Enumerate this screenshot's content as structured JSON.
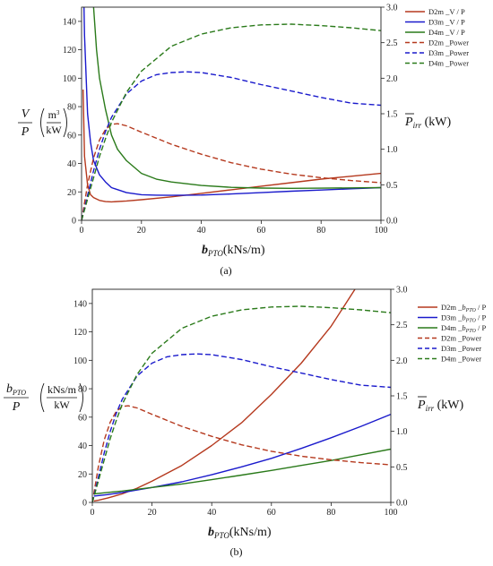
{
  "chart_data": [
    {
      "type": "line",
      "caption": "(a)",
      "xlabel": {
        "main": "b",
        "sub": "PTO",
        "tail": "(kNs/m)"
      },
      "ylabel_left": {
        "numer": "V",
        "denom": "P",
        "unit_top": "m",
        "unit_sup": "3",
        "unit_bot": "kW"
      },
      "ylabel_right": {
        "main": "P",
        "sub": "irr",
        "tail": " (kW)"
      },
      "xlim": [
        0,
        100
      ],
      "ylim_left": [
        0,
        150
      ],
      "ylim_right": [
        0,
        3.0
      ],
      "xticks": [
        0,
        20,
        40,
        60,
        80,
        100
      ],
      "yticks_left": [
        0,
        20,
        40,
        60,
        80,
        100,
        120,
        140
      ],
      "yticks_right": [
        "0.0",
        "0.5",
        "1.0",
        "1.5",
        "2.0",
        "2.5",
        "3.0"
      ],
      "legend_position": "top-right",
      "series": [
        {
          "name": "D2m _V / P",
          "axis": "left",
          "style": "solid",
          "color": "#b5391e",
          "x": [
            0.5,
            1,
            2,
            3,
            4,
            6,
            8,
            10,
            15,
            20,
            30,
            40,
            50,
            60,
            70,
            80,
            90,
            100
          ],
          "y": [
            92,
            45,
            25,
            18,
            16,
            14,
            13.2,
            13,
            13.6,
            14.5,
            16.5,
            19,
            21.5,
            24,
            26.5,
            29,
            31,
            33
          ]
        },
        {
          "name": "D3m _V / P",
          "axis": "left",
          "style": "solid",
          "color": "#1a1acc",
          "x": [
            0.8,
            1,
            2,
            3,
            4,
            6,
            8,
            10,
            15,
            20,
            25,
            30,
            40,
            50,
            60,
            70,
            80,
            90,
            100
          ],
          "y": [
            150,
            130,
            75,
            55,
            42,
            32,
            27,
            23,
            19.5,
            18,
            17.7,
            17.6,
            17.8,
            18.5,
            19.5,
            20.5,
            21.3,
            22.2,
            23
          ]
        },
        {
          "name": "D4m _V / P",
          "axis": "left",
          "style": "solid",
          "color": "#2a7a1a",
          "x": [
            4,
            5,
            6,
            8,
            10,
            12,
            15,
            20,
            25,
            30,
            40,
            50,
            60,
            70,
            80,
            90,
            100
          ],
          "y": [
            150,
            120,
            100,
            78,
            60,
            50,
            42,
            33,
            29,
            27,
            24.5,
            23.2,
            22.7,
            22.5,
            22.6,
            22.8,
            23
          ]
        },
        {
          "name": "D2m _Power",
          "axis": "right",
          "style": "dashed",
          "color": "#b5391e",
          "x": [
            0,
            2,
            4,
            6,
            8,
            10,
            12,
            15,
            20,
            30,
            40,
            50,
            60,
            70,
            80,
            90,
            100
          ],
          "y": [
            0,
            0.5,
            0.88,
            1.13,
            1.28,
            1.35,
            1.36,
            1.33,
            1.24,
            1.07,
            0.93,
            0.81,
            0.72,
            0.65,
            0.6,
            0.56,
            0.53
          ]
        },
        {
          "name": "D3m _Power",
          "axis": "right",
          "style": "dashed",
          "color": "#1a1acc",
          "x": [
            0,
            2,
            4,
            6,
            8,
            10,
            15,
            20,
            25,
            30,
            35,
            40,
            50,
            60,
            70,
            80,
            90,
            100
          ],
          "y": [
            0,
            0.35,
            0.7,
            1.0,
            1.25,
            1.45,
            1.78,
            1.96,
            2.05,
            2.08,
            2.09,
            2.08,
            2.01,
            1.91,
            1.82,
            1.73,
            1.65,
            1.62
          ]
        },
        {
          "name": "D4m _Power",
          "axis": "right",
          "style": "dashed",
          "color": "#2a7a1a",
          "x": [
            0,
            2,
            4,
            6,
            8,
            10,
            15,
            20,
            30,
            40,
            50,
            60,
            70,
            80,
            90,
            100
          ],
          "y": [
            0,
            0.3,
            0.6,
            0.9,
            1.15,
            1.38,
            1.8,
            2.1,
            2.45,
            2.62,
            2.71,
            2.75,
            2.76,
            2.74,
            2.71,
            2.67
          ]
        }
      ]
    },
    {
      "type": "line",
      "caption": "(b)",
      "xlabel": {
        "main": "b",
        "sub": "PTO",
        "tail": "(kNs/m)"
      },
      "ylabel_left": {
        "numer": "b",
        "numer_sub": "PTO",
        "denom": "P",
        "unit_top": "kNs/m",
        "unit_bot": "kW"
      },
      "ylabel_right": {
        "main": "P",
        "sub": "irr",
        "tail": " (kW)"
      },
      "xlim": [
        0,
        100
      ],
      "ylim_left": [
        0,
        150
      ],
      "ylim_right": [
        0,
        3.0
      ],
      "xticks": [
        0,
        20,
        40,
        60,
        80,
        100
      ],
      "yticks_left": [
        0,
        20,
        40,
        60,
        80,
        100,
        120,
        140
      ],
      "yticks_right": [
        "0.0",
        "0.5",
        "1.0",
        "1.5",
        "2.0",
        "2.5",
        "3.0"
      ],
      "legend_position": "top-right",
      "series": [
        {
          "name": "D2m _bPTO / P",
          "axis": "left",
          "style": "solid",
          "color": "#b5391e",
          "x": [
            0.5,
            2,
            5,
            10,
            15,
            20,
            30,
            40,
            50,
            60,
            70,
            80,
            88
          ],
          "y": [
            1,
            1.5,
            3,
            6,
            10,
            15,
            26,
            40,
            56,
            76,
            98,
            124,
            150
          ]
        },
        {
          "name": "D3m _bPTO / P",
          "axis": "left",
          "style": "solid",
          "color": "#1a1acc",
          "x": [
            0.5,
            5,
            10,
            20,
            30,
            40,
            50,
            60,
            70,
            80,
            90,
            100
          ],
          "y": [
            4.5,
            5.5,
            7,
            10.5,
            14.5,
            19.5,
            25,
            31,
            38,
            45.5,
            53.5,
            62
          ]
        },
        {
          "name": "D4m _bPTO / P",
          "axis": "left",
          "style": "solid",
          "color": "#2a7a1a",
          "x": [
            0.5,
            5,
            10,
            20,
            30,
            40,
            50,
            60,
            70,
            80,
            90,
            100
          ],
          "y": [
            6,
            7,
            8,
            10.5,
            13,
            16,
            19.2,
            22.5,
            26,
            29.5,
            33.5,
            37.5
          ]
        },
        {
          "name": "D2m _Power",
          "axis": "right",
          "style": "dashed",
          "color": "#b5391e",
          "x": [
            0,
            2,
            4,
            6,
            8,
            10,
            12,
            15,
            20,
            30,
            40,
            50,
            60,
            70,
            80,
            90,
            100
          ],
          "y": [
            0,
            0.5,
            0.88,
            1.13,
            1.28,
            1.35,
            1.36,
            1.33,
            1.24,
            1.07,
            0.93,
            0.81,
            0.72,
            0.65,
            0.6,
            0.56,
            0.53
          ]
        },
        {
          "name": "D3m _Power",
          "axis": "right",
          "style": "dashed",
          "color": "#1a1acc",
          "x": [
            0,
            2,
            4,
            6,
            8,
            10,
            15,
            20,
            25,
            30,
            35,
            40,
            50,
            60,
            70,
            80,
            90,
            100
          ],
          "y": [
            0,
            0.35,
            0.7,
            1.0,
            1.25,
            1.45,
            1.78,
            1.96,
            2.05,
            2.08,
            2.09,
            2.08,
            2.01,
            1.91,
            1.82,
            1.73,
            1.65,
            1.62
          ]
        },
        {
          "name": "D4m _Power",
          "axis": "right",
          "style": "dashed",
          "color": "#2a7a1a",
          "x": [
            0,
            2,
            4,
            6,
            8,
            10,
            15,
            20,
            30,
            40,
            50,
            60,
            70,
            80,
            90,
            100
          ],
          "y": [
            0,
            0.3,
            0.6,
            0.9,
            1.15,
            1.38,
            1.8,
            2.1,
            2.45,
            2.62,
            2.71,
            2.75,
            2.76,
            2.74,
            2.71,
            2.67
          ]
        }
      ]
    }
  ]
}
